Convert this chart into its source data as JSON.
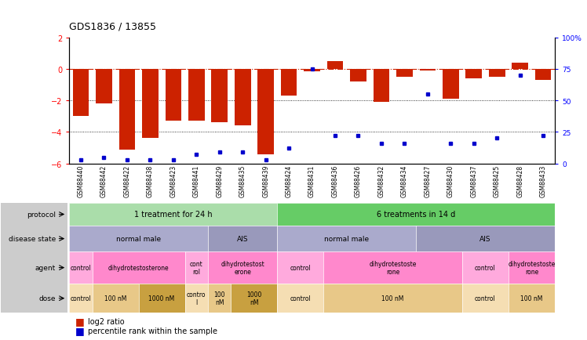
{
  "title": "GDS1836 / 13855",
  "samples": [
    "GSM88440",
    "GSM88442",
    "GSM88422",
    "GSM88438",
    "GSM88423",
    "GSM88441",
    "GSM88429",
    "GSM88435",
    "GSM88439",
    "GSM88424",
    "GSM88431",
    "GSM88436",
    "GSM88426",
    "GSM88432",
    "GSM88434",
    "GSM88427",
    "GSM88430",
    "GSM88437",
    "GSM88425",
    "GSM88428",
    "GSM88433"
  ],
  "log2_ratio": [
    -3.0,
    -2.2,
    -5.1,
    -4.4,
    -3.3,
    -3.3,
    -3.4,
    -3.6,
    -5.4,
    -1.7,
    -0.15,
    0.5,
    -0.8,
    -2.1,
    -0.5,
    -0.1,
    -1.9,
    -0.6,
    -0.5,
    0.4,
    -0.7
  ],
  "percentile": [
    3,
    5,
    3,
    3,
    3,
    7,
    9,
    9,
    3,
    12,
    75,
    22,
    22,
    16,
    16,
    55,
    16,
    16,
    20,
    70,
    22
  ],
  "ylim_left": [
    -6,
    2
  ],
  "ylim_right": [
    0,
    100
  ],
  "bar_color": "#cc2200",
  "dot_color": "#0000cc",
  "hline_color": "#cc2200",
  "protocol_1_color": "#aaddaa",
  "protocol_2_color": "#66cc66",
  "ds_nm_color": "#aaaacc",
  "ds_ais_color": "#9999bb",
  "agent_ctrl_color": "#ffaadd",
  "agent_dht_color": "#ff88cc",
  "dose_ctrl_color": "#f5deb3",
  "dose_100_color": "#e8c888",
  "dose_1000_color": "#c8a040",
  "label_bg_color": "#cccccc",
  "protocol_groups": [
    {
      "label": "1 treatment for 24 h",
      "start": 0,
      "end": 9,
      "color_key": "protocol_1_color"
    },
    {
      "label": "6 treatments in 14 d",
      "start": 9,
      "end": 21,
      "color_key": "protocol_2_color"
    }
  ],
  "disease_state_groups": [
    {
      "label": "normal male",
      "start": 0,
      "end": 6,
      "type": "nm"
    },
    {
      "label": "AIS",
      "start": 6,
      "end": 9,
      "type": "ais"
    },
    {
      "label": "normal male",
      "start": 9,
      "end": 15,
      "type": "nm"
    },
    {
      "label": "AIS",
      "start": 15,
      "end": 21,
      "type": "ais"
    }
  ],
  "agent_groups": [
    {
      "label": "control",
      "start": 0,
      "end": 1,
      "type": "ctrl"
    },
    {
      "label": "dihydrotestosterone",
      "start": 1,
      "end": 5,
      "type": "dht"
    },
    {
      "label": "cont\nrol",
      "start": 5,
      "end": 6,
      "type": "ctrl"
    },
    {
      "label": "dihydrotestost\nerone",
      "start": 6,
      "end": 9,
      "type": "dht"
    },
    {
      "label": "control",
      "start": 9,
      "end": 11,
      "type": "ctrl"
    },
    {
      "label": "dihydrotestoste\nrone",
      "start": 11,
      "end": 17,
      "type": "dht"
    },
    {
      "label": "control",
      "start": 17,
      "end": 19,
      "type": "ctrl"
    },
    {
      "label": "dihydrotestoste\nrone",
      "start": 19,
      "end": 21,
      "type": "dht"
    }
  ],
  "dose_groups": [
    {
      "label": "control",
      "start": 0,
      "end": 1,
      "type": "ctrl"
    },
    {
      "label": "100 nM",
      "start": 1,
      "end": 3,
      "type": "100"
    },
    {
      "label": "1000 nM",
      "start": 3,
      "end": 5,
      "type": "1000"
    },
    {
      "label": "contro\nl",
      "start": 5,
      "end": 6,
      "type": "ctrl"
    },
    {
      "label": "100\nnM",
      "start": 6,
      "end": 7,
      "type": "100"
    },
    {
      "label": "1000\nnM",
      "start": 7,
      "end": 9,
      "type": "1000"
    },
    {
      "label": "control",
      "start": 9,
      "end": 11,
      "type": "ctrl"
    },
    {
      "label": "100 nM",
      "start": 11,
      "end": 17,
      "type": "100"
    },
    {
      "label": "control",
      "start": 17,
      "end": 19,
      "type": "ctrl"
    },
    {
      "label": "100 nM",
      "start": 19,
      "end": 21,
      "type": "100"
    }
  ]
}
